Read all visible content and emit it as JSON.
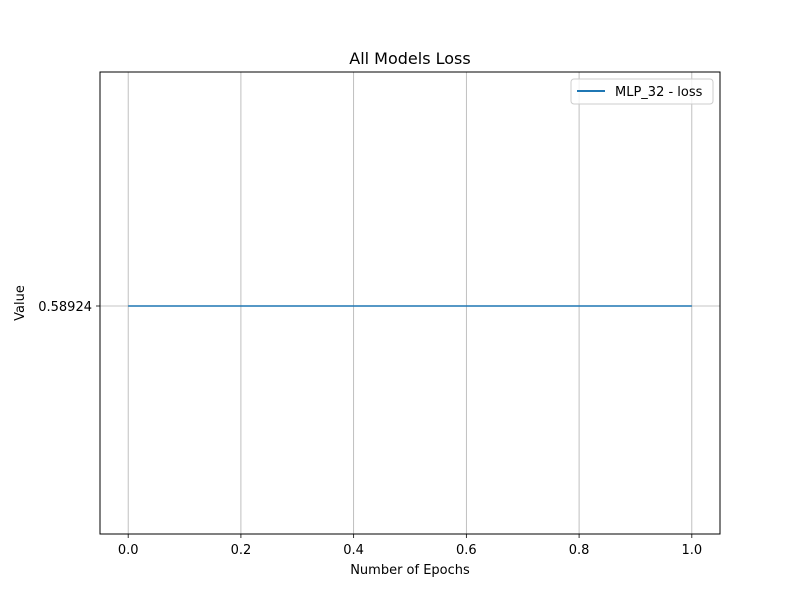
{
  "chart_data": {
    "type": "line",
    "title": "All Models Loss",
    "xlabel": "Number of Epochs",
    "ylabel": "Value",
    "xlim": [
      -0.05,
      1.05
    ],
    "x_ticks": [
      "0.0",
      "0.2",
      "0.4",
      "0.6",
      "0.8",
      "1.0"
    ],
    "y_ticks": [
      "0.58924"
    ],
    "grid": true,
    "legend_position": "top-right",
    "series": [
      {
        "name": "MLP_32 - loss",
        "color": "#1f77b4",
        "x": [
          0,
          1
        ],
        "y": [
          0.58924,
          0.58924
        ]
      }
    ]
  }
}
